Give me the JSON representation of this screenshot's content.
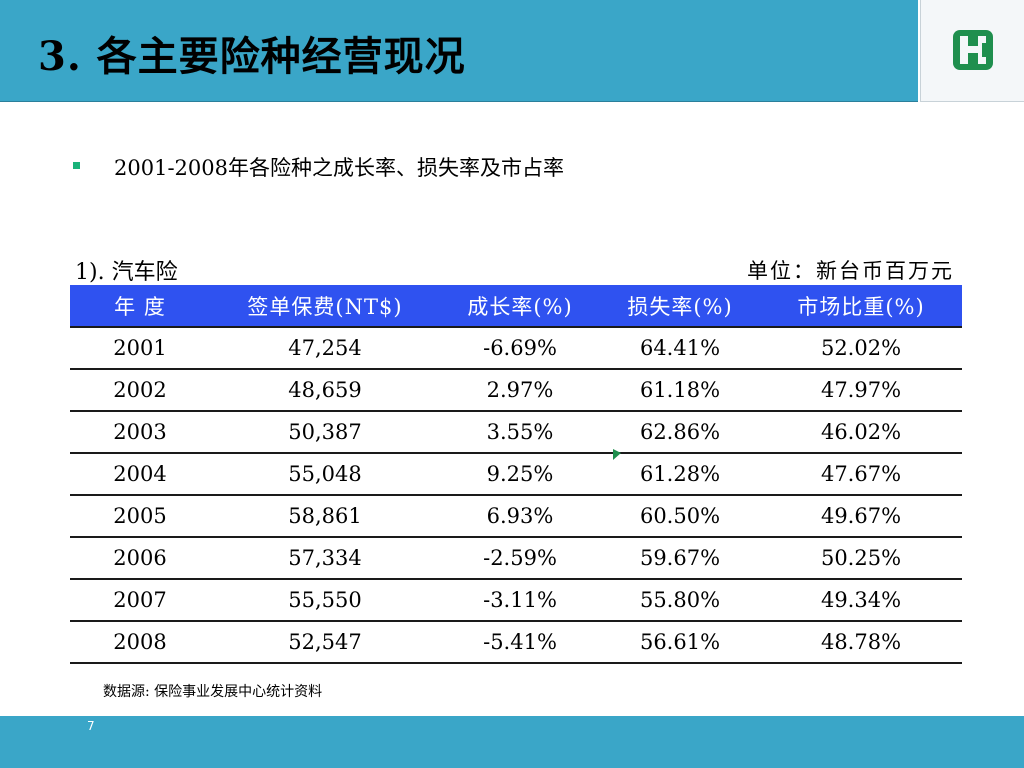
{
  "slide": {
    "title": "3. 各主要险种经营现况",
    "bullet": "2001-2008年各险种之成长率、损失率及市占率",
    "caption": "1). 汽车险",
    "unit": "单位：新台币百万元",
    "source": "数据源: 保险事业发展中心统计资料",
    "page_number": "7"
  },
  "colors": {
    "header_band": "#3aa6c8",
    "table_header": "#2f52f0",
    "bullet": "#19b37a",
    "logo": "#1f8f4e"
  },
  "icons": {
    "logo": "fubon-logo-icon",
    "bullet": "square-bullet-icon"
  },
  "table": {
    "headers": [
      "年 度",
      "签单保费(NT$)",
      "成长率(%)",
      "损失率(%)",
      "市场比重(%)"
    ],
    "rows": [
      [
        "2001",
        "47,254",
        "-6.69%",
        "64.41%",
        "52.02%"
      ],
      [
        "2002",
        "48,659",
        "2.97%",
        "61.18%",
        "47.97%"
      ],
      [
        "2003",
        "50,387",
        "3.55%",
        "62.86%",
        "46.02%"
      ],
      [
        "2004",
        "55,048",
        "9.25%",
        "61.28%",
        "47.67%"
      ],
      [
        "2005",
        "58,861",
        "6.93%",
        "60.50%",
        "49.67%"
      ],
      [
        "2006",
        "57,334",
        "-2.59%",
        "59.67%",
        "50.25%"
      ],
      [
        "2007",
        "55,550",
        "-3.11%",
        "55.80%",
        "49.34%"
      ],
      [
        "2008",
        "52,547",
        "-5.41%",
        "56.61%",
        "48.78%"
      ]
    ]
  }
}
